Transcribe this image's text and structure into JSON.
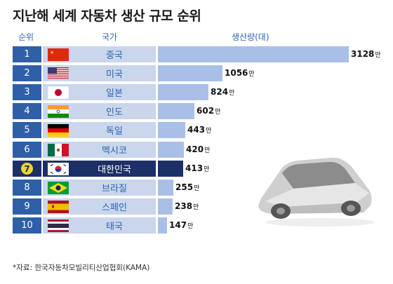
{
  "title": "지난해 세계 자동차 생산 규모 순위",
  "headers": {
    "rank": "순위",
    "country": "국가",
    "production": "생산량(대)"
  },
  "unit": "만",
  "source": "*자료: 한국자동차모빌리티산업협회(KAMA)",
  "colors": {
    "rank_bg": "#2f5fa6",
    "row_bg": "#c9d6ec",
    "bar": "#a9bfe8",
    "highlight": "#1c2f66",
    "highlight_circle": "#f1d22b"
  },
  "chart_data": {
    "type": "bar",
    "orientation": "horizontal",
    "title": "지난해 세계 자동차 생산 규모 순위",
    "categories": [
      "중국",
      "미국",
      "일본",
      "인도",
      "독일",
      "멕시코",
      "대한민국",
      "브라질",
      "스페인",
      "태국"
    ],
    "values": [
      3128,
      1056,
      824,
      602,
      443,
      420,
      413,
      255,
      238,
      147
    ],
    "ranks": [
      "1",
      "2",
      "3",
      "4",
      "5",
      "6",
      "7",
      "8",
      "9",
      "10"
    ],
    "flags": [
      "china-flag-icon",
      "usa-flag-icon",
      "japan-flag-icon",
      "india-flag-icon",
      "germany-flag-icon",
      "mexico-flag-icon",
      "korea-flag-icon",
      "brazil-flag-icon",
      "spain-flag-icon",
      "thailand-flag-icon"
    ],
    "highlight_index": 6,
    "value_unit": "만"
  }
}
